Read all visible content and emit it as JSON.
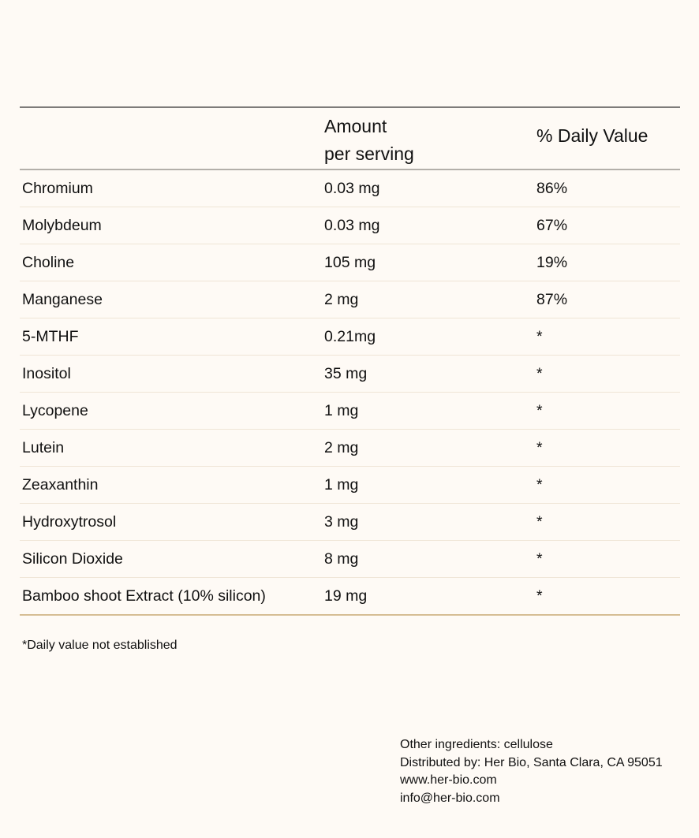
{
  "header": {
    "amount_line1": "Amount",
    "amount_line2": "per serving",
    "daily_value": "% Daily Value"
  },
  "rows": [
    {
      "name": "Chromium",
      "amount": "0.03 mg",
      "dv": "86%"
    },
    {
      "name": "Molybdeum",
      "amount": "0.03 mg",
      "dv": "67%"
    },
    {
      "name": "Choline",
      "amount": "105 mg",
      "dv": "19%"
    },
    {
      "name": "Manganese",
      "amount": "2 mg",
      "dv": "87%"
    },
    {
      "name": "5-MTHF",
      "amount": "0.21mg",
      "dv": "*"
    },
    {
      "name": "Inositol",
      "amount": "35 mg",
      "dv": "*"
    },
    {
      "name": "Lycopene",
      "amount": "1 mg",
      "dv": "*"
    },
    {
      "name": "Lutein",
      "amount": "2 mg",
      "dv": "*"
    },
    {
      "name": "Zeaxanthin",
      "amount": "1 mg",
      "dv": "*"
    },
    {
      "name": "Hydroxytrosol",
      "amount": "3 mg",
      "dv": "*"
    },
    {
      "name": "Silicon Dioxide",
      "amount": "8 mg",
      "dv": "*"
    },
    {
      "name": "Bamboo shoot Extract (10% silicon)",
      "amount": "19 mg",
      "dv": "*"
    }
  ],
  "footnote": "*Daily value not established",
  "info": {
    "ingredients": "Other ingredients: cellulose",
    "distributor": "Distributed by: Her Bio, Santa Clara, CA 95051",
    "website": "www.her-bio.com",
    "email": "info@her-bio.com"
  }
}
